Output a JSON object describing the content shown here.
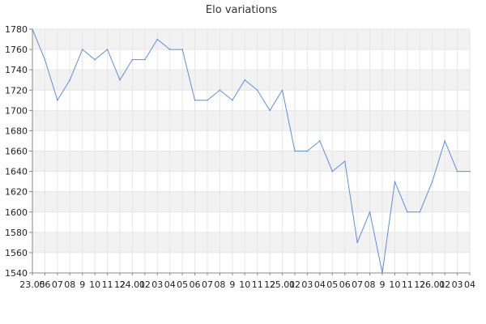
{
  "chart_data": {
    "type": "line",
    "title": "Elo variations",
    "xlabel": "",
    "ylabel": "",
    "ylim": [
      1540,
      1780
    ],
    "yticks": [
      1540,
      1560,
      1580,
      1600,
      1620,
      1640,
      1660,
      1680,
      1700,
      1720,
      1740,
      1760,
      1780
    ],
    "grid": true,
    "legend": "none",
    "x_tick_labels": [
      "23.05",
      "06",
      "07",
      "08",
      "9",
      "10",
      "11",
      "12",
      "24.01",
      "02",
      "03",
      "04",
      "05",
      "06",
      "07",
      "08",
      "9",
      "10",
      "11",
      "12",
      "25.01",
      "02",
      "03",
      "04",
      "05",
      "06",
      "07",
      "08",
      "9",
      "10",
      "11",
      "12",
      "26.01",
      "02",
      "03",
      "04"
    ],
    "series": [
      {
        "color": "#5b8fe0",
        "values": [
          1780,
          1750,
          1710,
          1730,
          1760,
          1750,
          1760,
          1730,
          1750,
          1750,
          1770,
          1760,
          1760,
          1710,
          1710,
          1720,
          1710,
          1730,
          1720,
          1700,
          1720,
          1660,
          1660,
          1670,
          1640,
          1650,
          1570,
          1600,
          1540,
          1630,
          1600,
          1600,
          1630,
          1670,
          1640,
          1640
        ]
      }
    ]
  }
}
